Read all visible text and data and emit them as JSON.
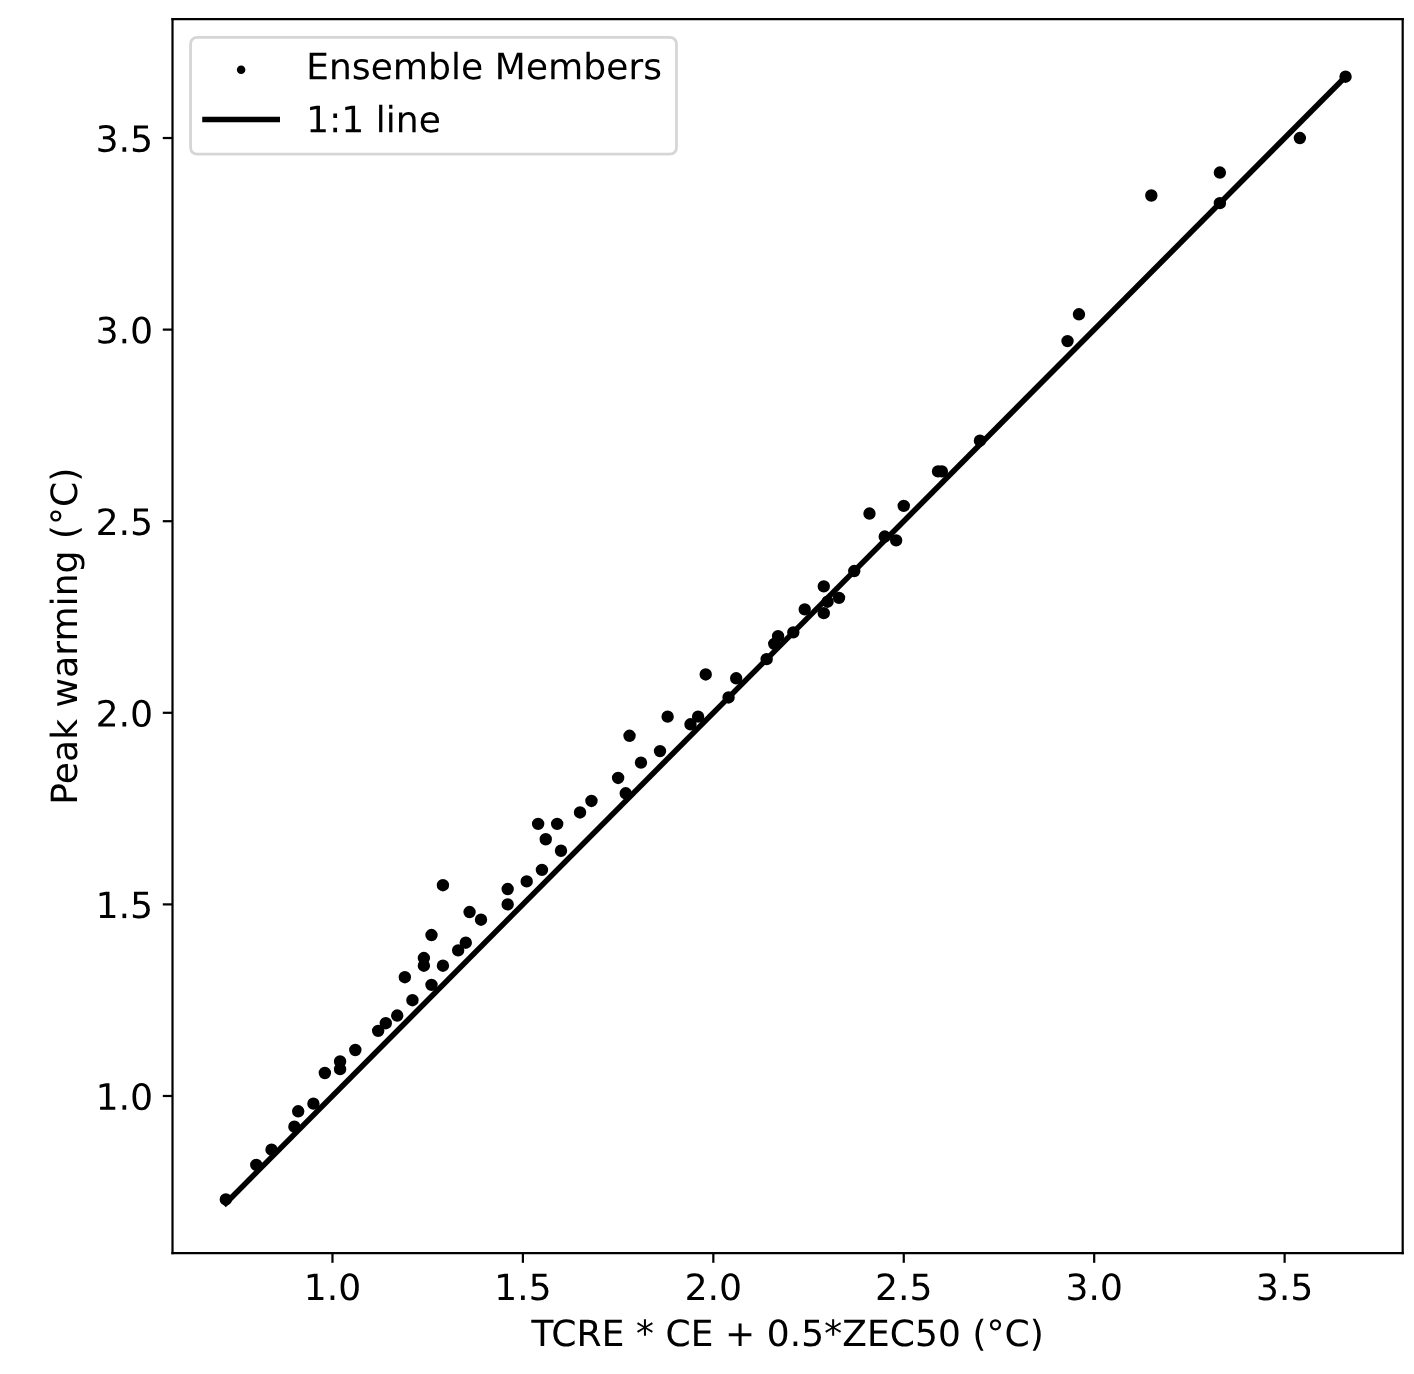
{
  "chart_data": {
    "type": "scatter",
    "xlabel": "TCRE * CE + 0.5*ZEC50 (°C)",
    "ylabel": "Peak warming (°C)",
    "xlim": [
      0.58,
      3.81
    ],
    "ylim": [
      0.59,
      3.81
    ],
    "xticks": [
      {
        "value": 1,
        "label": "1.0"
      },
      {
        "value": 1.5,
        "label": "1.5"
      },
      {
        "value": 2,
        "label": "2.0"
      },
      {
        "value": 2.5,
        "label": "2.5"
      },
      {
        "value": 3,
        "label": "3.0"
      },
      {
        "value": 3.5,
        "label": "3.5"
      }
    ],
    "yticks": [
      {
        "value": 1,
        "label": "1.0"
      },
      {
        "value": 1.5,
        "label": "1.5"
      },
      {
        "value": 2,
        "label": "2.0"
      },
      {
        "value": 2.5,
        "label": "2.5"
      },
      {
        "value": 3,
        "label": "3.0"
      },
      {
        "value": 3.5,
        "label": "3.5"
      }
    ],
    "grid": false,
    "legend": "top left",
    "series": [
      {
        "name": "Ensemble Members",
        "marker": "circle",
        "color": "#000000",
        "x": [
          3.66,
          3.54,
          3.33,
          3.33,
          3.15,
          2.96,
          2.93,
          2.7,
          2.59,
          2.5,
          2.41,
          2.6,
          2.45,
          2.48,
          2.37,
          2.29,
          2.3,
          2.33,
          2.29,
          2.24,
          2.21,
          2.17,
          2.16,
          2.14,
          2.06,
          2.04,
          1.98,
          1.96,
          1.94,
          1.88,
          1.86,
          1.81,
          1.78,
          1.75,
          1.77,
          1.68,
          1.65,
          1.59,
          1.54,
          1.56,
          1.6,
          1.55,
          1.51,
          1.46,
          1.46,
          1.39,
          1.36,
          1.29,
          1.35,
          1.33,
          1.26,
          1.24,
          1.24,
          1.19,
          1.29,
          1.26,
          1.21,
          1.17,
          1.14,
          1.12,
          1.06,
          1.02,
          1.02,
          0.98,
          0.95,
          0.91,
          0.9,
          0.84,
          0.8,
          0.72
        ],
        "values": [
          3.66,
          3.5,
          3.41,
          3.33,
          3.35,
          3.04,
          2.97,
          2.71,
          2.63,
          2.54,
          2.52,
          2.63,
          2.46,
          2.45,
          2.37,
          2.33,
          2.29,
          2.3,
          2.26,
          2.27,
          2.21,
          2.2,
          2.18,
          2.14,
          2.09,
          2.04,
          2.1,
          1.99,
          1.97,
          1.99,
          1.9,
          1.87,
          1.94,
          1.83,
          1.79,
          1.77,
          1.74,
          1.71,
          1.71,
          1.67,
          1.64,
          1.59,
          1.56,
          1.54,
          1.5,
          1.46,
          1.48,
          1.55,
          1.4,
          1.38,
          1.42,
          1.36,
          1.34,
          1.31,
          1.34,
          1.29,
          1.25,
          1.21,
          1.19,
          1.17,
          1.12,
          1.07,
          1.09,
          1.06,
          0.98,
          0.96,
          0.92,
          0.86,
          0.82,
          0.73
        ]
      },
      {
        "name": "1:1 line",
        "type": "line",
        "line_style": "solid",
        "color": "#000000",
        "x": [
          0.72,
          3.66
        ],
        "values": [
          0.72,
          3.66
        ]
      }
    ]
  }
}
